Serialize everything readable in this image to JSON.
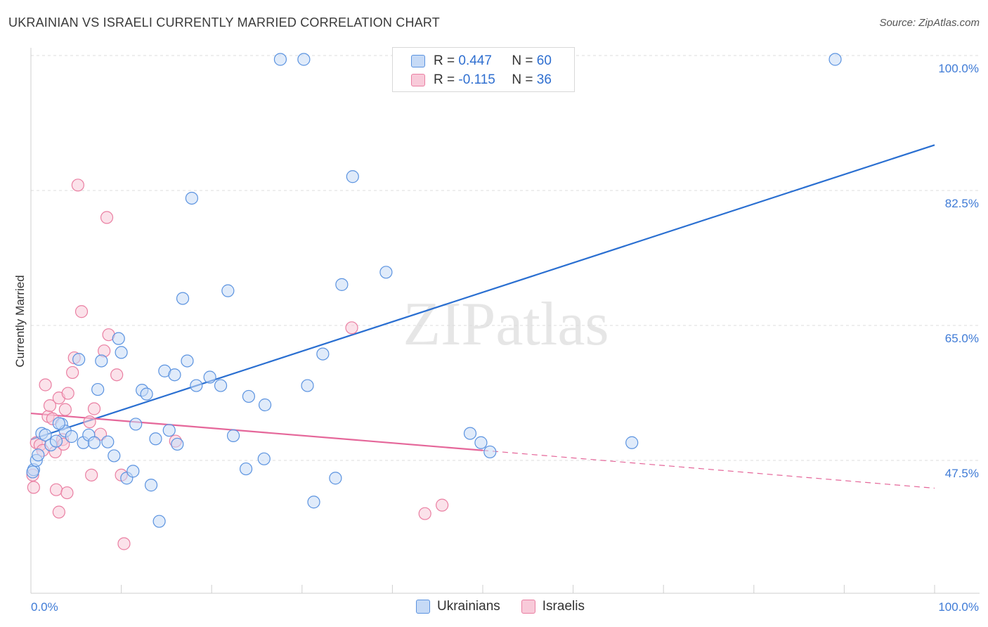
{
  "title": "UKRAINIAN VS ISRAELI CURRENTLY MARRIED CORRELATION CHART",
  "source": "Source: ZipAtlas.com",
  "watermark": "ZIPatlas",
  "legend": {
    "rows": [
      {
        "r_label": "R =",
        "r_value": "0.447",
        "n_label": "N =",
        "n_value": "60"
      },
      {
        "r_label": "R =",
        "r_value": "-0.115",
        "n_label": "N =",
        "n_value": "36"
      }
    ]
  },
  "chart_data": {
    "type": "scatter",
    "title": "UKRAINIAN VS ISRAELI CURRENTLY MARRIED CORRELATION CHART",
    "xlabel": "",
    "ylabel": "Currently Married",
    "xlim": [
      0,
      100
    ],
    "ylim": [
      31,
      102
    ],
    "x_tick_labels": [
      "0.0%",
      "100.0%"
    ],
    "y_ticks": [
      47.5,
      65.0,
      82.5,
      100.0
    ],
    "y_tick_labels": [
      "47.5%",
      "65.0%",
      "82.5%",
      "100.0%"
    ],
    "grid": true,
    "legend_position": "top-center",
    "colors": {
      "ukrainians": "#5b93e0",
      "ukrainians_fill": "#c6daf6",
      "israelis": "#ea7fa2",
      "israelis_fill": "#f8cad9",
      "ukrainians_line": "#2a6fd1",
      "israelis_line": "#e5679a"
    },
    "series": [
      {
        "name": "Ukrainians",
        "r": 0.447,
        "n": 60,
        "trend": {
          "x": [
            0,
            100
          ],
          "y": [
            50.2,
            88.4
          ]
        },
        "points": [
          [
            0.3,
            46.3
          ],
          [
            0.6,
            47.5
          ],
          [
            0.8,
            48.2
          ],
          [
            1.2,
            51.0
          ],
          [
            1.6,
            50.8
          ],
          [
            2.2,
            49.5
          ],
          [
            2.8,
            50.0
          ],
          [
            3.4,
            52.2
          ],
          [
            3.8,
            51.3
          ],
          [
            4.5,
            50.6
          ],
          [
            5.3,
            60.6
          ],
          [
            5.8,
            49.8
          ],
          [
            6.4,
            50.8
          ],
          [
            7.0,
            49.8
          ],
          [
            7.4,
            56.7
          ],
          [
            7.8,
            60.4
          ],
          [
            8.5,
            49.9
          ],
          [
            9.2,
            48.1
          ],
          [
            9.7,
            63.3
          ],
          [
            10.0,
            61.5
          ],
          [
            10.6,
            45.2
          ],
          [
            11.3,
            46.1
          ],
          [
            11.6,
            52.2
          ],
          [
            12.3,
            56.6
          ],
          [
            12.8,
            56.1
          ],
          [
            13.3,
            44.3
          ],
          [
            13.8,
            50.3
          ],
          [
            14.2,
            39.6
          ],
          [
            14.8,
            59.1
          ],
          [
            15.3,
            51.4
          ],
          [
            15.9,
            58.6
          ],
          [
            16.2,
            49.6
          ],
          [
            16.8,
            68.5
          ],
          [
            17.3,
            60.4
          ],
          [
            17.8,
            81.5
          ],
          [
            18.3,
            57.2
          ],
          [
            19.8,
            58.3
          ],
          [
            21.0,
            57.2
          ],
          [
            21.8,
            69.5
          ],
          [
            22.4,
            50.7
          ],
          [
            23.8,
            46.4
          ],
          [
            24.1,
            55.8
          ],
          [
            25.8,
            47.7
          ],
          [
            25.9,
            54.7
          ],
          [
            27.6,
            99.5
          ],
          [
            30.2,
            99.5
          ],
          [
            30.6,
            57.2
          ],
          [
            31.3,
            42.1
          ],
          [
            32.3,
            61.3
          ],
          [
            33.7,
            45.2
          ],
          [
            34.4,
            70.3
          ],
          [
            35.6,
            84.3
          ],
          [
            39.3,
            71.9
          ],
          [
            48.6,
            51.0
          ],
          [
            49.8,
            49.8
          ],
          [
            50.8,
            48.6
          ],
          [
            89.0,
            99.5
          ],
          [
            66.5,
            49.8
          ],
          [
            0.2,
            46.0
          ],
          [
            3.1,
            52.3
          ]
        ]
      },
      {
        "name": "Israelis",
        "r": -0.115,
        "n": 36,
        "trend": {
          "x": [
            0,
            50
          ],
          "y": [
            53.6,
            48.8
          ],
          "dashed_to": {
            "x": 100,
            "y": 43.9
          }
        },
        "points": [
          [
            0.2,
            45.6
          ],
          [
            0.3,
            44.0
          ],
          [
            0.6,
            49.8
          ],
          [
            1.0,
            49.5
          ],
          [
            1.3,
            48.8
          ],
          [
            1.6,
            57.3
          ],
          [
            1.9,
            53.2
          ],
          [
            2.1,
            54.6
          ],
          [
            2.4,
            52.9
          ],
          [
            2.7,
            48.6
          ],
          [
            2.8,
            43.7
          ],
          [
            3.1,
            55.6
          ],
          [
            3.1,
            40.8
          ],
          [
            3.5,
            50.2
          ],
          [
            3.6,
            49.6
          ],
          [
            3.8,
            54.1
          ],
          [
            4.0,
            43.3
          ],
          [
            4.1,
            56.2
          ],
          [
            4.6,
            58.9
          ],
          [
            4.8,
            60.8
          ],
          [
            5.2,
            83.2
          ],
          [
            6.5,
            52.5
          ],
          [
            6.7,
            45.6
          ],
          [
            7.0,
            54.2
          ],
          [
            7.7,
            50.9
          ],
          [
            8.1,
            61.7
          ],
          [
            8.4,
            79.0
          ],
          [
            8.6,
            63.8
          ],
          [
            9.5,
            58.6
          ],
          [
            10.0,
            45.6
          ],
          [
            10.3,
            36.7
          ],
          [
            16.0,
            50.0
          ],
          [
            5.6,
            66.8
          ],
          [
            35.5,
            64.7
          ],
          [
            43.6,
            40.6
          ],
          [
            45.5,
            41.7
          ]
        ]
      }
    ]
  },
  "bottom_legend": {
    "items": [
      {
        "label": "Ukrainians"
      },
      {
        "label": "Israelis"
      }
    ]
  }
}
